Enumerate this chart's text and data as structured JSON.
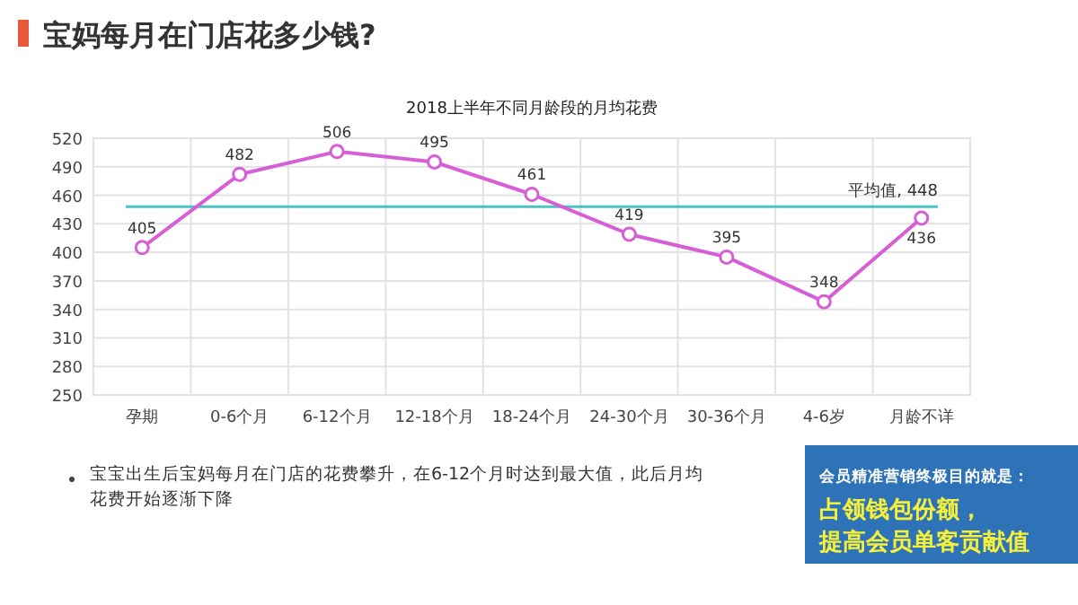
{
  "chart_data": {
    "type": "line",
    "title": "宝妈每月在门店花多少钱?",
    "subtitle": "2018上半年不同月龄段的月均花费",
    "categories": [
      "孕期",
      "0-6个月",
      "6-12个月",
      "12-18个月",
      "18-24个月",
      "24-30个月",
      "30-36个月",
      "4-6岁",
      "月龄不详"
    ],
    "values": [
      405,
      482,
      506,
      495,
      461,
      419,
      395,
      348,
      436
    ],
    "color": "#d65fd6",
    "marker": "circle",
    "line_style": "solid",
    "data_labels": true,
    "ylim": [
      250,
      520
    ],
    "yticks": [
      250,
      280,
      310,
      340,
      370,
      400,
      430,
      460,
      490,
      520
    ],
    "grid": true,
    "ref_lines": [
      {
        "axis": "y",
        "value": 448,
        "label": "平均值, 448",
        "color": "#4dc3c3"
      }
    ],
    "annotations": [
      "宝宝出生后宝妈每月在门店的花费攀升，在6-12个月时达到最大值，此后月均花费开始逐渐下降",
      "会员精准营销终极目的就是：",
      "占领钱包份额，",
      "提高会员单客贡献值"
    ]
  }
}
